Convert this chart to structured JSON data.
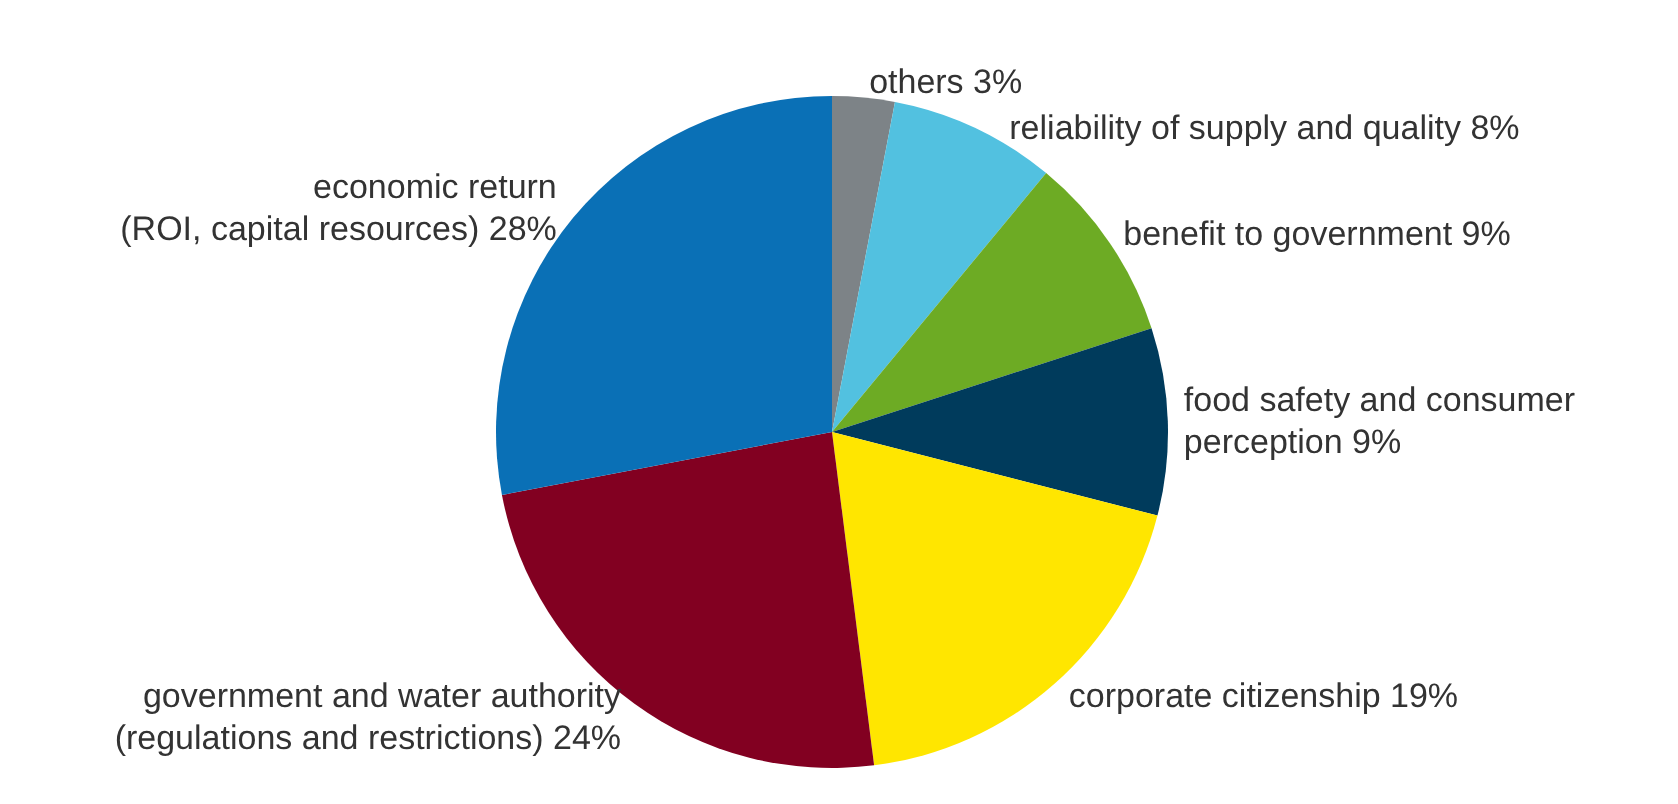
{
  "chart_data": {
    "type": "pie",
    "categories": [
      "others",
      "reliability of supply and quality",
      "benefit to government",
      "food safety and consumer\nperception",
      "corporate citizenship",
      "government and water authority\n(regulations and restrictions)",
      "economic return\n(ROI, capital resources)"
    ],
    "values": [
      3,
      8,
      9,
      9,
      19,
      24,
      28
    ],
    "value_labels": [
      "3%",
      "8%",
      "9%",
      "9%",
      "19%",
      "24%",
      "28%"
    ],
    "colors": [
      "#7d8387",
      "#52c1e0",
      "#6dab24",
      "#003b5c",
      "#ffe600",
      "#820021",
      "#0a70b6"
    ],
    "legend": false
  }
}
